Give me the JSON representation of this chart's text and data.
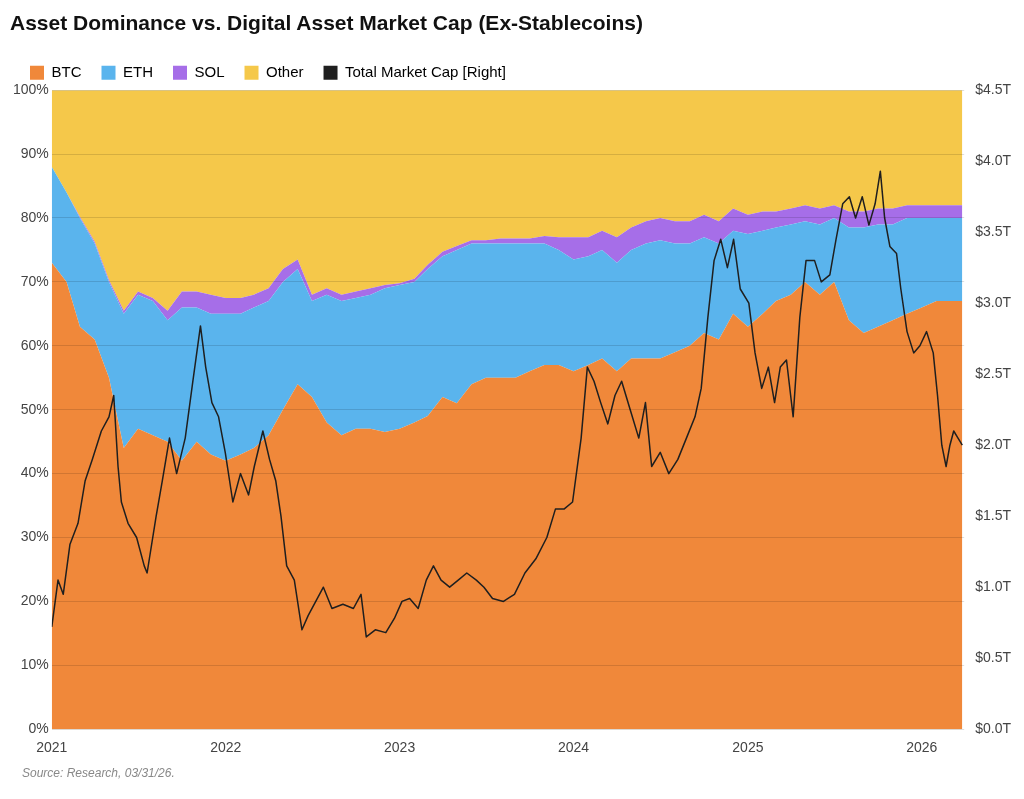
{
  "chart_data": {
    "type": "area",
    "title": "Asset Dominance vs. Digital Asset Market Cap (Ex-Stablecoins)",
    "stacked": true,
    "legend": "top left",
    "grid": "y",
    "marker": "none",
    "x": [
      "2021-01-01",
      "2021-02-01",
      "2021-03-01",
      "2021-04-01",
      "2021-05-01",
      "2021-06-01",
      "2021-07-01",
      "2021-08-01",
      "2021-09-01",
      "2021-10-01",
      "2021-11-01",
      "2021-12-01",
      "2022-01-01",
      "2022-02-01",
      "2022-03-01",
      "2022-04-01",
      "2022-05-01",
      "2022-06-01",
      "2022-07-01",
      "2022-08-01",
      "2022-09-01",
      "2022-10-01",
      "2022-11-01",
      "2022-12-01",
      "2023-01-01",
      "2023-02-01",
      "2023-03-01",
      "2023-04-01",
      "2023-05-01",
      "2023-06-01",
      "2023-07-01",
      "2023-08-01",
      "2023-09-01",
      "2023-10-01",
      "2023-11-01",
      "2023-12-01",
      "2024-01-01",
      "2024-02-01",
      "2024-03-01",
      "2024-04-01",
      "2024-05-01",
      "2024-06-01",
      "2024-07-01",
      "2024-08-01",
      "2024-09-01",
      "2024-10-01",
      "2024-11-01",
      "2024-12-01",
      "2025-01-01",
      "2025-02-01",
      "2025-03-01",
      "2025-04-01",
      "2025-05-01",
      "2025-06-01",
      "2025-07-01",
      "2025-08-01",
      "2025-09-01",
      "2025-10-01",
      "2025-11-01",
      "2025-12-01",
      "2026-01-01",
      "2026-02-01",
      "2026-03-01",
      "2026-03-27"
    ],
    "series": [
      {
        "name": "BTC",
        "color": "#f0883a",
        "values": [
          73,
          70,
          63,
          61,
          55,
          44,
          47,
          46,
          45,
          42,
          45,
          43,
          42,
          43,
          44,
          46,
          50,
          54,
          52,
          48,
          46,
          47,
          47,
          46.5,
          47,
          48,
          49,
          52,
          51,
          54,
          55,
          55,
          55,
          56,
          57,
          57,
          56,
          57,
          58,
          56,
          58,
          58,
          58,
          59,
          60,
          62,
          61,
          65,
          63,
          65,
          67,
          68,
          70,
          68,
          70,
          64,
          62,
          63,
          64,
          65,
          66,
          67,
          67,
          67
        ]
      },
      {
        "name": "ETH",
        "color": "#5ab4ed",
        "values": [
          15,
          14,
          17,
          15,
          15,
          21,
          21,
          21,
          19,
          24,
          21,
          22,
          23,
          22,
          22,
          21,
          20,
          18,
          15,
          20,
          21,
          20.5,
          21,
          22.5,
          22.5,
          22,
          23,
          22,
          24,
          22,
          21,
          21,
          21,
          20,
          19,
          18,
          17.5,
          17,
          17,
          17,
          17,
          18,
          18.5,
          17,
          16,
          15,
          15,
          13,
          14.5,
          13,
          11.5,
          11,
          9.5,
          11,
          10,
          14.5,
          16.5,
          16,
          15,
          15,
          14,
          13,
          13,
          13
        ]
      },
      {
        "name": "SOL",
        "color": "#a66ee8",
        "values": [
          0,
          0,
          0.2,
          0.3,
          0.3,
          0.5,
          0.5,
          0.5,
          1.5,
          2.5,
          2.5,
          3,
          2.5,
          2.5,
          2,
          2,
          2,
          1.5,
          1,
          1,
          1,
          1,
          1,
          0.5,
          0.3,
          0.5,
          0.7,
          0.7,
          0.6,
          0.5,
          0.5,
          0.8,
          0.8,
          0.8,
          1.2,
          2,
          3.5,
          3,
          3,
          4,
          3.5,
          3.5,
          3.5,
          3.5,
          3.5,
          3.5,
          3.5,
          3.5,
          3,
          3,
          2.5,
          2.5,
          2.5,
          2.5,
          2,
          2.5,
          2.5,
          2.5,
          2.5,
          2,
          2,
          2,
          2,
          2
        ]
      },
      {
        "name": "Other",
        "color": "#f5c84a",
        "values": [
          12,
          16,
          19.8,
          23.7,
          29.7,
          34.5,
          31.5,
          32.5,
          34.5,
          31.5,
          31.5,
          32,
          32.5,
          32.5,
          32,
          31,
          28,
          26.5,
          32,
          31,
          32,
          31.5,
          31,
          30.5,
          30.2,
          29.5,
          27.3,
          25.3,
          24.4,
          23.5,
          23.5,
          23.2,
          23.2,
          23.2,
          22.8,
          23,
          23,
          23,
          22,
          23,
          21.5,
          20.5,
          20,
          20.5,
          20.5,
          19.5,
          20.5,
          18.5,
          19.5,
          19,
          19,
          18.5,
          18,
          18.5,
          18,
          19,
          19,
          18.5,
          18.5,
          18,
          18,
          18,
          18,
          18
        ]
      },
      {
        "name": "Total Market Cap [Right]",
        "type": "line",
        "axis": "y2",
        "color": "#1f1f1f",
        "line_style": "solid",
        "x": [
          "2021-01-01",
          "2021-01-14",
          "2021-01-25",
          "2021-02-08",
          "2021-02-25",
          "2021-03-12",
          "2021-03-27",
          "2021-04-15",
          "2021-05-01",
          "2021-05-11",
          "2021-05-20",
          "2021-05-27",
          "2021-06-10",
          "2021-06-28",
          "2021-07-14",
          "2021-07-20",
          "2021-08-08",
          "2021-08-21",
          "2021-09-05",
          "2021-09-20",
          "2021-10-08",
          "2021-10-24",
          "2021-11-09",
          "2021-11-20",
          "2021-12-03",
          "2021-12-17",
          "2021-12-31",
          "2022-01-16",
          "2022-02-01",
          "2022-02-18",
          "2022-03-02",
          "2022-03-20",
          "2022-04-03",
          "2022-04-16",
          "2022-04-27",
          "2022-05-09",
          "2022-05-25",
          "2022-06-10",
          "2022-06-23",
          "2022-07-09",
          "2022-07-25",
          "2022-08-12",
          "2022-09-04",
          "2022-09-26",
          "2022-10-12",
          "2022-10-23",
          "2022-11-11",
          "2022-12-03",
          "2022-12-21",
          "2023-01-06",
          "2023-01-22",
          "2023-02-09",
          "2023-02-26",
          "2023-03-13",
          "2023-03-29",
          "2023-04-16",
          "2023-05-04",
          "2023-05-22",
          "2023-06-11",
          "2023-06-27",
          "2023-07-15",
          "2023-08-07",
          "2023-08-30",
          "2023-09-21",
          "2023-10-14",
          "2023-11-06",
          "2023-11-24",
          "2023-12-12",
          "2023-12-30",
          "2024-01-17",
          "2024-01-30",
          "2024-02-13",
          "2024-02-27",
          "2024-03-13",
          "2024-03-28",
          "2024-04-11",
          "2024-04-29",
          "2024-05-17",
          "2024-05-31",
          "2024-06-13",
          "2024-07-01",
          "2024-07-19",
          "2024-08-07",
          "2024-08-25",
          "2024-09-12",
          "2024-09-25",
          "2024-10-09",
          "2024-10-22",
          "2024-11-05",
          "2024-11-19",
          "2024-12-02",
          "2024-12-16",
          "2025-01-03",
          "2025-01-16",
          "2025-01-30",
          "2025-02-13",
          "2025-02-26",
          "2025-03-10",
          "2025-03-23",
          "2025-04-06",
          "2025-04-20",
          "2025-05-03",
          "2025-05-21",
          "2025-06-04",
          "2025-06-22",
          "2025-07-05",
          "2025-07-19",
          "2025-08-02",
          "2025-08-15",
          "2025-08-29",
          "2025-09-12",
          "2025-09-25",
          "2025-10-06",
          "2025-10-15",
          "2025-10-26",
          "2025-11-09",
          "2025-11-18",
          "2025-12-01",
          "2025-12-15",
          "2025-12-28",
          "2026-01-11",
          "2026-01-25",
          "2026-02-03",
          "2026-02-12",
          "2026-02-21",
          "2026-03-01",
          "2026-03-09",
          "2026-03-18",
          "2026-03-27"
        ],
        "values": [
          0.72,
          1.05,
          0.95,
          1.3,
          1.45,
          1.75,
          1.9,
          2.1,
          2.2,
          2.35,
          1.85,
          1.6,
          1.45,
          1.35,
          1.15,
          1.1,
          1.5,
          1.75,
          2.05,
          1.8,
          2.05,
          2.45,
          2.84,
          2.55,
          2.3,
          2.2,
          1.95,
          1.6,
          1.8,
          1.65,
          1.85,
          2.1,
          1.9,
          1.75,
          1.5,
          1.15,
          1.05,
          0.7,
          0.8,
          0.9,
          1.0,
          0.85,
          0.88,
          0.85,
          0.95,
          0.65,
          0.7,
          0.68,
          0.78,
          0.9,
          0.92,
          0.85,
          1.05,
          1.15,
          1.05,
          1.0,
          1.05,
          1.1,
          1.05,
          1.0,
          0.92,
          0.9,
          0.95,
          1.1,
          1.2,
          1.35,
          1.55,
          1.55,
          1.6,
          2.05,
          2.55,
          2.45,
          2.3,
          2.15,
          2.35,
          2.45,
          2.25,
          2.05,
          2.3,
          1.85,
          1.95,
          1.8,
          1.9,
          2.05,
          2.2,
          2.4,
          2.9,
          3.3,
          3.45,
          3.25,
          3.45,
          3.1,
          3.0,
          2.65,
          2.4,
          2.55,
          2.3,
          2.55,
          2.6,
          2.2,
          2.9,
          3.3,
          3.3,
          3.15,
          3.2,
          3.45,
          3.7,
          3.75,
          3.6,
          3.75,
          3.55,
          3.7,
          3.93,
          3.6,
          3.4,
          3.35,
          3.1,
          2.8,
          2.65,
          2.7,
          2.8,
          2.65,
          2.35,
          2.0,
          1.85,
          2.0,
          2.1,
          2.05,
          2.0
        ]
      }
    ],
    "xlim": [
      "2021-01-01",
      "2026-03-31"
    ],
    "xticks": [
      {
        "value": "2021-01-01",
        "label": "2021"
      },
      {
        "value": "2022-01-01",
        "label": "2022"
      },
      {
        "value": "2023-01-01",
        "label": "2023"
      },
      {
        "value": "2024-01-01",
        "label": "2024"
      },
      {
        "value": "2025-01-01",
        "label": "2025"
      },
      {
        "value": "2026-01-01",
        "label": "2026"
      }
    ],
    "ylim": [
      0,
      100
    ],
    "yticks": [
      {
        "value": 0,
        "label": "0%"
      },
      {
        "value": 10,
        "label": "10%"
      },
      {
        "value": 20,
        "label": "20%"
      },
      {
        "value": 30,
        "label": "30%"
      },
      {
        "value": 40,
        "label": "40%"
      },
      {
        "value": 50,
        "label": "50%"
      },
      {
        "value": 60,
        "label": "60%"
      },
      {
        "value": 70,
        "label": "70%"
      },
      {
        "value": 80,
        "label": "80%"
      },
      {
        "value": 90,
        "label": "90%"
      },
      {
        "value": 100,
        "label": "100%"
      }
    ],
    "y2lim": [
      0,
      4.5
    ],
    "y2ticks": [
      {
        "value": 0,
        "label": "$0.0T"
      },
      {
        "value": 0.5,
        "label": "$0.5T"
      },
      {
        "value": 1,
        "label": "$1.0T"
      },
      {
        "value": 1.5,
        "label": "$1.5T"
      },
      {
        "value": 2,
        "label": "$2.0T"
      },
      {
        "value": 2.5,
        "label": "$2.5T"
      },
      {
        "value": 3,
        "label": "$3.0T"
      },
      {
        "value": 3.5,
        "label": "$3.5T"
      },
      {
        "value": 4,
        "label": "$4.0T"
      },
      {
        "value": 4.5,
        "label": "$4.5T"
      }
    ],
    "annotations": [
      "Source: Research, 03/31/26."
    ]
  }
}
